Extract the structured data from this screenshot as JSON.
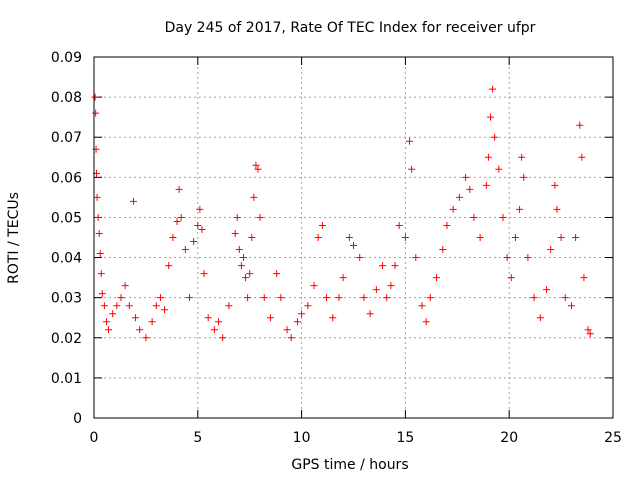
{
  "chart_data": {
    "type": "scatter",
    "title": "Day 245 of 2017, Rate Of TEC Index for receiver ufpr",
    "xlabel": "GPS time / hours",
    "ylabel": "ROTI / TECUs",
    "xlim": [
      0,
      25
    ],
    "ylim": [
      0,
      0.09
    ],
    "x_ticks": [
      0,
      5,
      10,
      15,
      20,
      25
    ],
    "x_tick_labels": [
      "0",
      "5",
      "10",
      "15",
      "20",
      "25"
    ],
    "y_ticks": [
      0,
      0.01,
      0.02,
      0.03,
      0.04,
      0.05,
      0.06,
      0.07,
      0.08,
      0.09
    ],
    "y_tick_labels": [
      "0",
      "0.01",
      "0.02",
      "0.03",
      "0.04",
      "0.05",
      "0.06",
      "0.07",
      "0.08",
      "0.09"
    ],
    "grid": true,
    "marker": "+",
    "color": "#ff0000",
    "series": [
      {
        "points": [
          [
            0.05,
            0.08
          ],
          [
            0.08,
            0.076
          ],
          [
            0.1,
            0.067
          ],
          [
            0.12,
            0.061
          ],
          [
            0.15,
            0.055
          ],
          [
            0.2,
            0.05
          ],
          [
            0.25,
            0.046
          ],
          [
            0.3,
            0.041
          ],
          [
            0.35,
            0.036
          ],
          [
            0.4,
            0.031
          ],
          [
            0.5,
            0.028
          ],
          [
            0.6,
            0.024
          ],
          [
            0.7,
            0.022
          ],
          [
            0.9,
            0.026
          ],
          [
            1.1,
            0.028
          ],
          [
            1.3,
            0.03
          ],
          [
            1.5,
            0.033
          ],
          [
            1.7,
            0.028
          ],
          [
            1.9,
            0.054
          ],
          [
            2.0,
            0.025
          ],
          [
            2.2,
            0.022
          ],
          [
            2.5,
            0.02
          ],
          [
            2.8,
            0.024
          ],
          [
            3.0,
            0.028
          ],
          [
            3.2,
            0.03
          ],
          [
            3.4,
            0.027
          ],
          [
            3.6,
            0.038
          ],
          [
            3.8,
            0.045
          ],
          [
            4.0,
            0.049
          ],
          [
            4.1,
            0.057
          ],
          [
            4.2,
            0.05
          ],
          [
            4.4,
            0.042
          ],
          [
            4.6,
            0.03
          ],
          [
            4.8,
            0.044
          ],
          [
            5.0,
            0.048
          ],
          [
            5.1,
            0.052
          ],
          [
            5.2,
            0.047
          ],
          [
            5.3,
            0.036
          ],
          [
            5.5,
            0.025
          ],
          [
            5.8,
            0.022
          ],
          [
            6.0,
            0.024
          ],
          [
            6.2,
            0.02
          ],
          [
            6.5,
            0.028
          ],
          [
            6.8,
            0.046
          ],
          [
            6.9,
            0.05
          ],
          [
            7.0,
            0.042
          ],
          [
            7.1,
            0.038
          ],
          [
            7.2,
            0.04
          ],
          [
            7.3,
            0.035
          ],
          [
            7.4,
            0.03
          ],
          [
            7.5,
            0.036
          ],
          [
            7.6,
            0.045
          ],
          [
            7.7,
            0.055
          ],
          [
            7.8,
            0.063
          ],
          [
            7.9,
            0.062
          ],
          [
            8.0,
            0.05
          ],
          [
            8.2,
            0.03
          ],
          [
            8.5,
            0.025
          ],
          [
            8.8,
            0.036
          ],
          [
            9.0,
            0.03
          ],
          [
            9.3,
            0.022
          ],
          [
            9.5,
            0.02
          ],
          [
            9.8,
            0.024
          ],
          [
            10.0,
            0.026
          ],
          [
            10.3,
            0.028
          ],
          [
            10.6,
            0.033
          ],
          [
            10.8,
            0.045
          ],
          [
            11.0,
            0.048
          ],
          [
            11.2,
            0.03
          ],
          [
            11.5,
            0.025
          ],
          [
            11.8,
            0.03
          ],
          [
            12.0,
            0.035
          ],
          [
            12.3,
            0.045
          ],
          [
            12.5,
            0.043
          ],
          [
            12.8,
            0.04
          ],
          [
            13.0,
            0.03
          ],
          [
            13.3,
            0.026
          ],
          [
            13.6,
            0.032
          ],
          [
            13.9,
            0.038
          ],
          [
            14.1,
            0.03
          ],
          [
            14.3,
            0.033
          ],
          [
            14.5,
            0.038
          ],
          [
            14.7,
            0.048
          ],
          [
            15.0,
            0.045
          ],
          [
            15.2,
            0.069
          ],
          [
            15.3,
            0.062
          ],
          [
            15.5,
            0.04
          ],
          [
            15.8,
            0.028
          ],
          [
            16.0,
            0.024
          ],
          [
            16.2,
            0.03
          ],
          [
            16.5,
            0.035
          ],
          [
            16.8,
            0.042
          ],
          [
            17.0,
            0.048
          ],
          [
            17.3,
            0.052
          ],
          [
            17.6,
            0.055
          ],
          [
            17.9,
            0.06
          ],
          [
            18.1,
            0.057
          ],
          [
            18.3,
            0.05
          ],
          [
            18.6,
            0.045
          ],
          [
            18.9,
            0.058
          ],
          [
            19.0,
            0.065
          ],
          [
            19.1,
            0.075
          ],
          [
            19.2,
            0.082
          ],
          [
            19.3,
            0.07
          ],
          [
            19.5,
            0.062
          ],
          [
            19.7,
            0.05
          ],
          [
            19.9,
            0.04
          ],
          [
            20.1,
            0.035
          ],
          [
            20.3,
            0.045
          ],
          [
            20.5,
            0.052
          ],
          [
            20.6,
            0.065
          ],
          [
            20.7,
            0.06
          ],
          [
            20.9,
            0.04
          ],
          [
            21.2,
            0.03
          ],
          [
            21.5,
            0.025
          ],
          [
            21.8,
            0.032
          ],
          [
            22.0,
            0.042
          ],
          [
            22.2,
            0.058
          ],
          [
            22.3,
            0.052
          ],
          [
            22.5,
            0.045
          ],
          [
            22.7,
            0.03
          ],
          [
            23.0,
            0.028
          ],
          [
            23.2,
            0.045
          ],
          [
            23.4,
            0.073
          ],
          [
            23.5,
            0.065
          ],
          [
            23.6,
            0.035
          ],
          [
            23.8,
            0.022
          ],
          [
            23.9,
            0.021
          ]
        ]
      }
    ]
  }
}
